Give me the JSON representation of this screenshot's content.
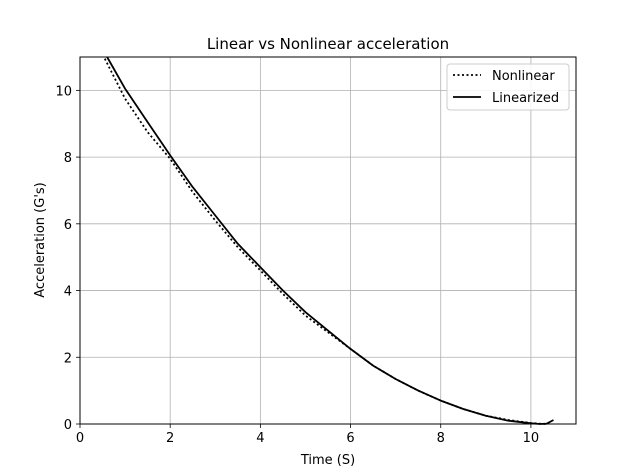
{
  "chart_data": {
    "type": "line",
    "title": "Linear vs Nonlinear acceleration",
    "xlabel": "Time (S)",
    "ylabel": "Acceleration (G's)",
    "xlim": [
      0,
      11
    ],
    "ylim": [
      0,
      11
    ],
    "xticks": [
      0,
      2,
      4,
      6,
      8,
      10
    ],
    "yticks": [
      0,
      2,
      4,
      6,
      8,
      10
    ],
    "grid": true,
    "legend_position": "top-right",
    "series": [
      {
        "name": "Nonlinear",
        "style": "dotted",
        "color": "#000000",
        "x": [
          0.55,
          1.0,
          1.5,
          2.0,
          2.5,
          3.0,
          3.5,
          4.0,
          4.5,
          5.0,
          5.5,
          6.0,
          6.5,
          7.0,
          7.5,
          8.0,
          8.5,
          9.0,
          9.5,
          10.0,
          10.2,
          10.35
        ],
        "y": [
          10.95,
          9.75,
          8.75,
          7.95,
          6.95,
          6.1,
          5.3,
          4.6,
          3.9,
          3.25,
          2.75,
          2.25,
          1.75,
          1.35,
          1.0,
          0.7,
          0.45,
          0.25,
          0.12,
          0.03,
          0.01,
          0.0
        ]
      },
      {
        "name": "Linearized",
        "style": "solid",
        "color": "#000000",
        "x": [
          0.6,
          1.0,
          1.5,
          2.0,
          2.5,
          3.0,
          3.5,
          4.0,
          4.5,
          5.0,
          5.5,
          6.0,
          6.5,
          7.0,
          7.5,
          8.0,
          8.5,
          9.0,
          9.5,
          10.0,
          10.2,
          10.35,
          10.5
        ],
        "y": [
          11.0,
          10.05,
          9.05,
          8.05,
          7.1,
          6.25,
          5.4,
          4.7,
          4.0,
          3.35,
          2.8,
          2.25,
          1.75,
          1.35,
          1.0,
          0.7,
          0.45,
          0.25,
          0.1,
          0.02,
          0.0,
          0.01,
          0.12
        ]
      }
    ]
  }
}
